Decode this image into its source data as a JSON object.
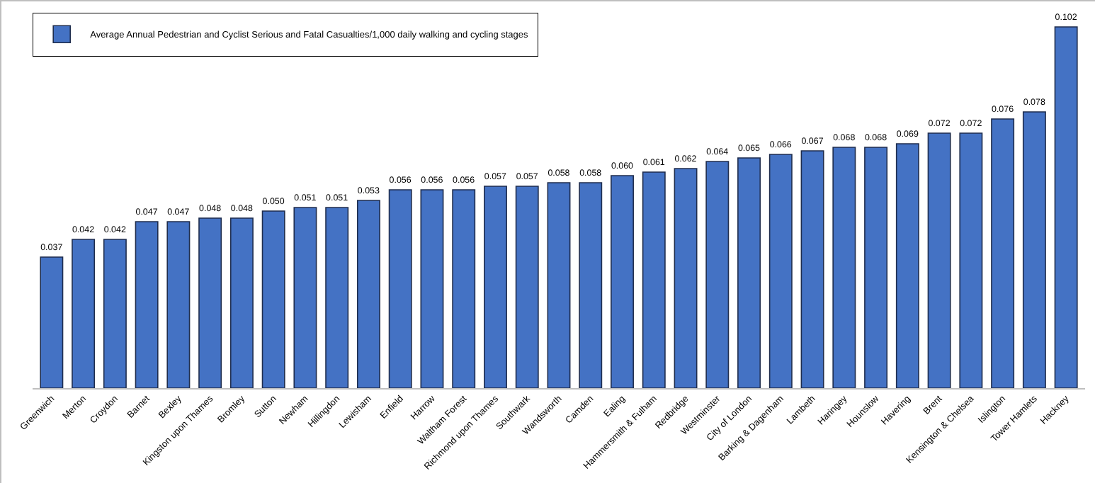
{
  "chart_data": {
    "type": "bar",
    "categories": [
      "Greenwich",
      "Merton",
      "Croydon",
      "Barnet",
      "Bexley",
      "Kingston upon Thames",
      "Bromley",
      "Sutton",
      "Newham",
      "Hillingdon",
      "Lewisham",
      "Enfield",
      "Harrow",
      "Waltham Forest",
      "Richmond upon Thames",
      "Southwark",
      "Wandsworth",
      "Camden",
      "Ealing",
      "Hammersmith & Fulham",
      "Redbridge",
      "Westminster",
      "City of London",
      "Barking & Dagenham",
      "Lambeth",
      "Haringey",
      "Hounslow",
      "Havering",
      "Brent",
      "Kensington & Chelsea",
      "Islington",
      "Tower Hamlets",
      "Hackney"
    ],
    "series": [
      {
        "name": "Average Annual Pedestrian and Cyclist Serious and Fatal Casualties/1,000 daily walking and cycling stages",
        "color": "#4472c4",
        "values": [
          0.037,
          0.042,
          0.042,
          0.047,
          0.047,
          0.048,
          0.048,
          0.05,
          0.051,
          0.051,
          0.053,
          0.056,
          0.056,
          0.056,
          0.057,
          0.057,
          0.058,
          0.058,
          0.06,
          0.061,
          0.062,
          0.064,
          0.065,
          0.066,
          0.067,
          0.068,
          0.068,
          0.069,
          0.072,
          0.072,
          0.076,
          0.078,
          0.102
        ],
        "value_labels": [
          "0.037",
          "0.042",
          "0.042",
          "0.047",
          "0.047",
          "0.048",
          "0.048",
          "0.050",
          "0.051",
          "0.051",
          "0.053",
          "0.056",
          "0.056",
          "0.056",
          "0.057",
          "0.057",
          "0.058",
          "0.058",
          "0.060",
          "0.061",
          "0.062",
          "0.064",
          "0.065",
          "0.066",
          "0.067",
          "0.068",
          "0.068",
          "0.069",
          "0.072",
          "0.072",
          "0.076",
          "0.078",
          "0.102"
        ]
      }
    ],
    "ylim": [
      0,
      0.106
    ],
    "tick_labels": "x",
    "grid": false,
    "legend": "top left"
  }
}
